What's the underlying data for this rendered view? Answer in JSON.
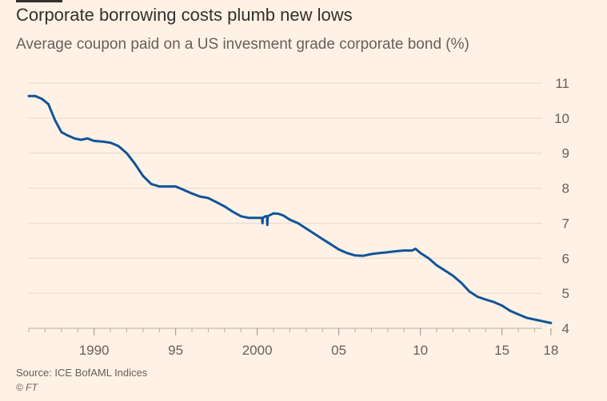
{
  "header": {
    "title": "Corporate borrowing costs plumb new lows",
    "subtitle": "Average coupon paid on a US invesment grade corporate bond (%)"
  },
  "footer": {
    "source": "Source: ICE BofAML Indices",
    "credit": "© FT"
  },
  "colors": {
    "background": "#fff1e5",
    "line": "#0f5499",
    "grid": "#e6d9ce",
    "text": "#66605c"
  },
  "chart_data": {
    "type": "line",
    "title": "Corporate borrowing costs plumb new lows",
    "subtitle": "Average coupon paid on a US invesment grade corporate bond (%)",
    "xlabel": "",
    "ylabel": "",
    "xlim": [
      1986.0,
      2018.3
    ],
    "ylim": [
      4,
      11
    ],
    "x_ticks": [
      {
        "value": 1990,
        "label": "1990"
      },
      {
        "value": 1995,
        "label": "95"
      },
      {
        "value": 2000,
        "label": "2000"
      },
      {
        "value": 2005,
        "label": "05"
      },
      {
        "value": 2010,
        "label": "10"
      },
      {
        "value": 2015,
        "label": "15"
      },
      {
        "value": 2018,
        "label": "18"
      }
    ],
    "y_ticks": [
      4,
      5,
      6,
      7,
      8,
      9,
      10,
      11
    ],
    "grid": true,
    "y_axis_position": "right",
    "series": [
      {
        "x": [
          1986.0,
          1986.4,
          1986.8,
          1987.2,
          1987.6,
          1988.0,
          1988.4,
          1988.8,
          1989.2,
          1989.6,
          1990.0,
          1990.5,
          1991.0,
          1991.5,
          1992.0,
          1992.5,
          1993.0,
          1993.5,
          1994.0,
          1994.5,
          1995.0,
          1995.5,
          1996.0,
          1996.5,
          1997.0,
          1997.5,
          1998.0,
          1998.5,
          1999.0,
          1999.5,
          2000.0,
          2000.3,
          2000.32,
          2000.34,
          2000.5,
          2000.6,
          2000.62,
          2000.64,
          2001.0,
          2001.3,
          2001.6,
          2002.0,
          2002.5,
          2003.0,
          2003.5,
          2004.0,
          2004.5,
          2005.0,
          2005.5,
          2006.0,
          2006.5,
          2007.0,
          2007.5,
          2008.0,
          2008.5,
          2009.0,
          2009.5,
          2009.7,
          2010.0,
          2010.5,
          2011.0,
          2011.5,
          2012.0,
          2012.5,
          2013.0,
          2013.5,
          2014.0,
          2014.5,
          2015.0,
          2015.5,
          2016.0,
          2016.5,
          2017.0,
          2017.5,
          2018.0
        ],
        "y": [
          10.63,
          10.63,
          10.55,
          10.4,
          9.95,
          9.6,
          9.5,
          9.42,
          9.38,
          9.42,
          9.35,
          9.33,
          9.3,
          9.2,
          9.0,
          8.7,
          8.35,
          8.12,
          8.05,
          8.05,
          8.05,
          7.95,
          7.85,
          7.76,
          7.72,
          7.6,
          7.48,
          7.33,
          7.2,
          7.15,
          7.15,
          7.15,
          7.0,
          7.15,
          7.2,
          7.2,
          6.95,
          7.2,
          7.28,
          7.27,
          7.22,
          7.1,
          7.0,
          6.85,
          6.7,
          6.55,
          6.4,
          6.25,
          6.15,
          6.08,
          6.07,
          6.12,
          6.15,
          6.17,
          6.2,
          6.22,
          6.22,
          6.27,
          6.15,
          6.0,
          5.8,
          5.65,
          5.5,
          5.3,
          5.05,
          4.9,
          4.82,
          4.75,
          4.65,
          4.5,
          4.4,
          4.3,
          4.25,
          4.2,
          4.15
        ]
      }
    ]
  }
}
